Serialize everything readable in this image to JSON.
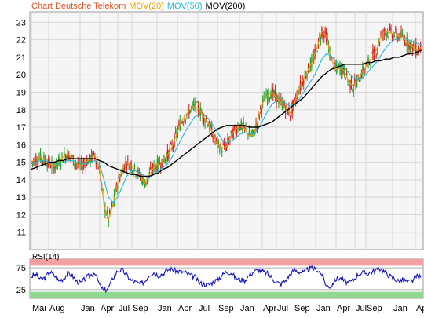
{
  "legend": {
    "title": "Chart Deutsche Telekom",
    "mov20_label": "MOV(20)",
    "mov50_label": "MOV(50)",
    "mov200_label": "MOV(200)",
    "rsi_label": "RSI(14)"
  },
  "colors": {
    "background": "#ffffff",
    "plot_background": "#f5f5f5",
    "grid": "#d8d8d8",
    "frame": "#9a9a9a",
    "title": "#e05020",
    "mov20": "#f0a000",
    "mov50": "#20b8d8",
    "mov200": "#000000",
    "candle_up": "#22a022",
    "candle_down": "#d02020",
    "rsi_line": "#1010c0",
    "rsi_overbought": "#f4a0a0",
    "rsi_oversold": "#90d890"
  },
  "chart_data": [
    {
      "type": "line",
      "title": "Chart Deutsche Telekom",
      "xlabel": "",
      "ylabel": "",
      "ylim": [
        10,
        23.6
      ],
      "y_ticks": [
        11,
        12,
        13,
        14,
        15,
        16,
        17,
        18,
        19,
        20,
        21,
        22,
        23
      ],
      "x_tick_labels": [
        "Mai",
        "Aug",
        "Jan",
        "Apr",
        "Jul",
        "Sep",
        "Jan",
        "Apr",
        "Jul",
        "Sep",
        "Jan",
        "Apr",
        "Jul",
        "Sep",
        "Jan",
        "Apr",
        "Jul",
        "Sep",
        "Jan",
        "Apr"
      ],
      "grid": true,
      "legend_position": "top-left",
      "series": [
        {
          "name": "MOV(20)",
          "values": [
            15.0,
            15.2,
            15.3,
            15.1,
            14.9,
            14.8,
            15.0,
            15.3,
            15.5,
            15.2,
            14.9,
            14.8,
            15.0,
            15.2,
            15.4,
            14.6,
            12.6,
            11.7,
            12.6,
            13.8,
            14.6,
            15.0,
            14.8,
            14.5,
            14.2,
            13.8,
            14.3,
            14.7,
            14.9,
            15.1,
            15.4,
            15.9,
            16.6,
            17.3,
            17.7,
            18.0,
            18.2,
            18.0,
            17.6,
            17.2,
            16.6,
            16.0,
            15.8,
            15.9,
            16.5,
            16.9,
            17.1,
            16.9,
            16.5,
            16.6,
            17.5,
            18.4,
            18.8,
            19.0,
            18.7,
            18.4,
            18.1,
            17.8,
            18.4,
            19.2,
            19.8,
            20.3,
            20.8,
            21.6,
            22.5,
            22.2,
            21.0,
            20.3,
            20.4,
            20.2,
            19.6,
            19.3,
            19.7,
            20.2,
            20.6,
            21.0,
            21.4,
            22.2,
            22.5,
            22.4,
            22.3,
            22.2,
            22.1,
            21.8,
            21.6,
            21.4,
            21.6
          ]
        },
        {
          "name": "MOV(50)",
          "values": [
            14.9,
            15.0,
            15.1,
            15.1,
            15.0,
            14.9,
            14.9,
            15.0,
            15.1,
            15.1,
            15.0,
            14.9,
            14.9,
            15.0,
            15.1,
            14.9,
            14.0,
            13.0,
            12.7,
            13.0,
            13.6,
            14.2,
            14.5,
            14.5,
            14.4,
            14.2,
            14.1,
            14.3,
            14.5,
            14.7,
            14.9,
            15.3,
            15.8,
            16.3,
            16.8,
            17.2,
            17.6,
            17.7,
            17.7,
            17.5,
            17.1,
            16.7,
            16.3,
            16.1,
            16.2,
            16.4,
            16.6,
            16.7,
            16.6,
            16.6,
            16.9,
            17.4,
            17.9,
            18.3,
            18.5,
            18.5,
            18.4,
            18.2,
            18.3,
            18.6,
            19.0,
            19.4,
            19.8,
            20.3,
            20.9,
            21.2,
            21.1,
            20.8,
            20.6,
            20.4,
            20.1,
            19.8,
            19.7,
            19.8,
            20.1,
            20.4,
            20.7,
            21.1,
            21.5,
            21.8,
            22.0,
            22.1,
            22.1,
            22.0,
            21.9,
            21.8,
            21.7
          ]
        },
        {
          "name": "MOV(200)",
          "values": [
            14.6,
            14.7,
            14.8,
            14.9,
            15.0,
            15.0,
            15.1,
            15.1,
            15.2,
            15.2,
            15.2,
            15.2,
            15.2,
            15.2,
            15.2,
            15.1,
            15.0,
            14.8,
            14.7,
            14.6,
            14.5,
            14.4,
            14.3,
            14.3,
            14.2,
            14.2,
            14.2,
            14.3,
            14.4,
            14.6,
            14.7,
            14.9,
            15.1,
            15.3,
            15.5,
            15.7,
            15.9,
            16.1,
            16.3,
            16.5,
            16.7,
            16.9,
            17.0,
            17.1,
            17.1,
            17.1,
            17.1,
            17.1,
            17.0,
            17.0,
            17.0,
            17.1,
            17.2,
            17.3,
            17.5,
            17.7,
            17.9,
            18.1,
            18.3,
            18.5,
            18.7,
            19.0,
            19.3,
            19.6,
            19.9,
            20.1,
            20.3,
            20.4,
            20.5,
            20.6,
            20.6,
            20.6,
            20.6,
            20.6,
            20.7,
            20.7,
            20.8,
            20.8,
            20.9,
            20.9,
            21.0,
            21.0,
            21.1,
            21.2,
            21.2,
            21.3,
            21.4
          ]
        }
      ]
    },
    {
      "type": "line",
      "title": "RSI(14)",
      "ylim": [
        5,
        95
      ],
      "y_ticks": [
        25,
        75
      ],
      "overbought": 80,
      "oversold": 20,
      "series": [
        {
          "name": "RSI(14)",
          "values": [
            55,
            60,
            48,
            52,
            66,
            58,
            45,
            50,
            62,
            57,
            44,
            40,
            52,
            58,
            65,
            36,
            22,
            30,
            52,
            68,
            70,
            58,
            46,
            42,
            38,
            44,
            60,
            64,
            58,
            62,
            70,
            72,
            68,
            66,
            64,
            58,
            54,
            40,
            38,
            36,
            42,
            48,
            58,
            66,
            64,
            52,
            48,
            46,
            58,
            66,
            70,
            66,
            62,
            52,
            42,
            38,
            46,
            60,
            70,
            66,
            64,
            72,
            74,
            70,
            60,
            34,
            32,
            48,
            52,
            44,
            40,
            48,
            60,
            64,
            62,
            66,
            70,
            74,
            64,
            56,
            50,
            44,
            48,
            42,
            46,
            56,
            52
          ]
        }
      ]
    }
  ]
}
